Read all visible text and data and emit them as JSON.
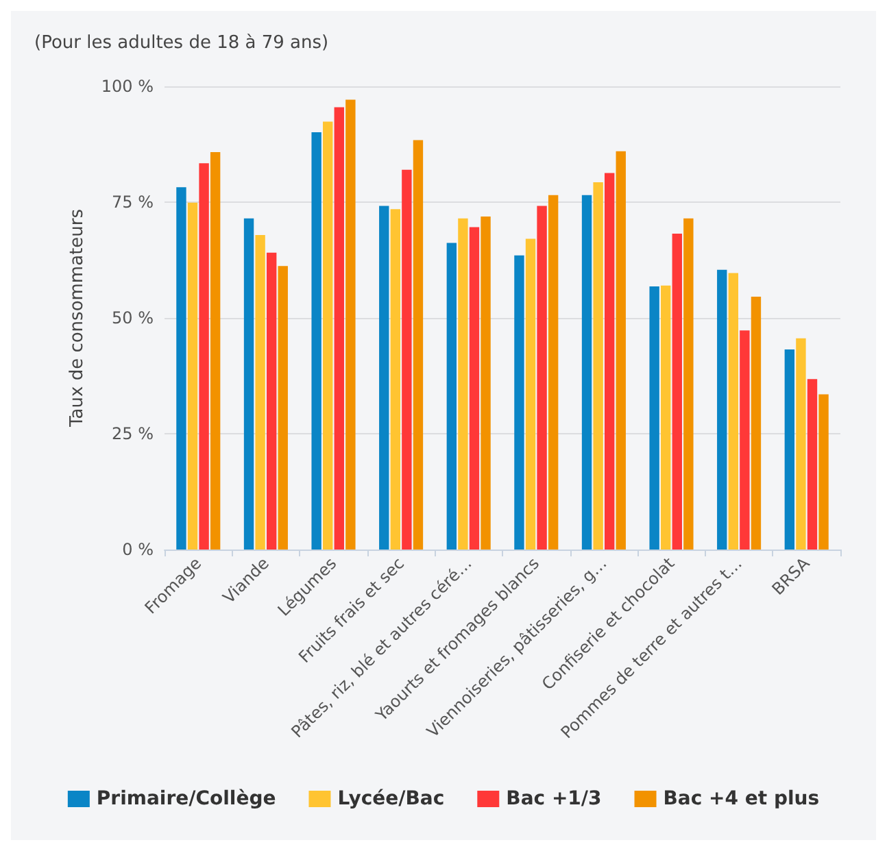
{
  "chart_data": {
    "type": "bar",
    "title": "(Pour les adultes de 18 à 79 ans)",
    "ylabel": "Taux de consommateurs",
    "categories": [
      "Fromage",
      "Viande",
      "Légumes",
      "Fruits frais et sec",
      "Pâtes, riz, blé et autres céré…",
      "Yaourts et fromages blancs",
      "Viennoiseries, pâtisseries, g…",
      "Confiserie et chocolat",
      "Pommes de terre et autres t…",
      "BRSA"
    ],
    "series": [
      {
        "name": "Primaire/Collège",
        "color": "#0a85c6",
        "values": [
          78.2,
          71.5,
          90.1,
          74.2,
          66.2,
          63.5,
          76.5,
          56.8,
          60.4,
          43.2
        ]
      },
      {
        "name": "Lycée/Bac",
        "color": "#ffc431",
        "values": [
          74.9,
          67.9,
          92.4,
          73.5,
          71.5,
          67.1,
          79.3,
          57.0,
          59.7,
          45.6
        ]
      },
      {
        "name": "Bac +1/3",
        "color": "#ff3838",
        "values": [
          83.4,
          64.1,
          95.5,
          82.0,
          69.6,
          74.2,
          81.3,
          68.2,
          47.3,
          36.8
        ]
      },
      {
        "name": "Bac +4 et plus",
        "color": "#f29200",
        "values": [
          85.8,
          61.2,
          97.1,
          88.4,
          71.9,
          76.5,
          86.0,
          71.5,
          54.6,
          33.5
        ]
      }
    ],
    "ylim": [
      0,
      100
    ],
    "yticks": [
      {
        "value": 0,
        "label": "0 %"
      },
      {
        "value": 25,
        "label": "25 %"
      },
      {
        "value": 50,
        "label": "50 %"
      },
      {
        "value": 75,
        "label": "75 %"
      },
      {
        "value": 100,
        "label": "100 %"
      }
    ],
    "grid": "y",
    "legend": "bottom"
  }
}
